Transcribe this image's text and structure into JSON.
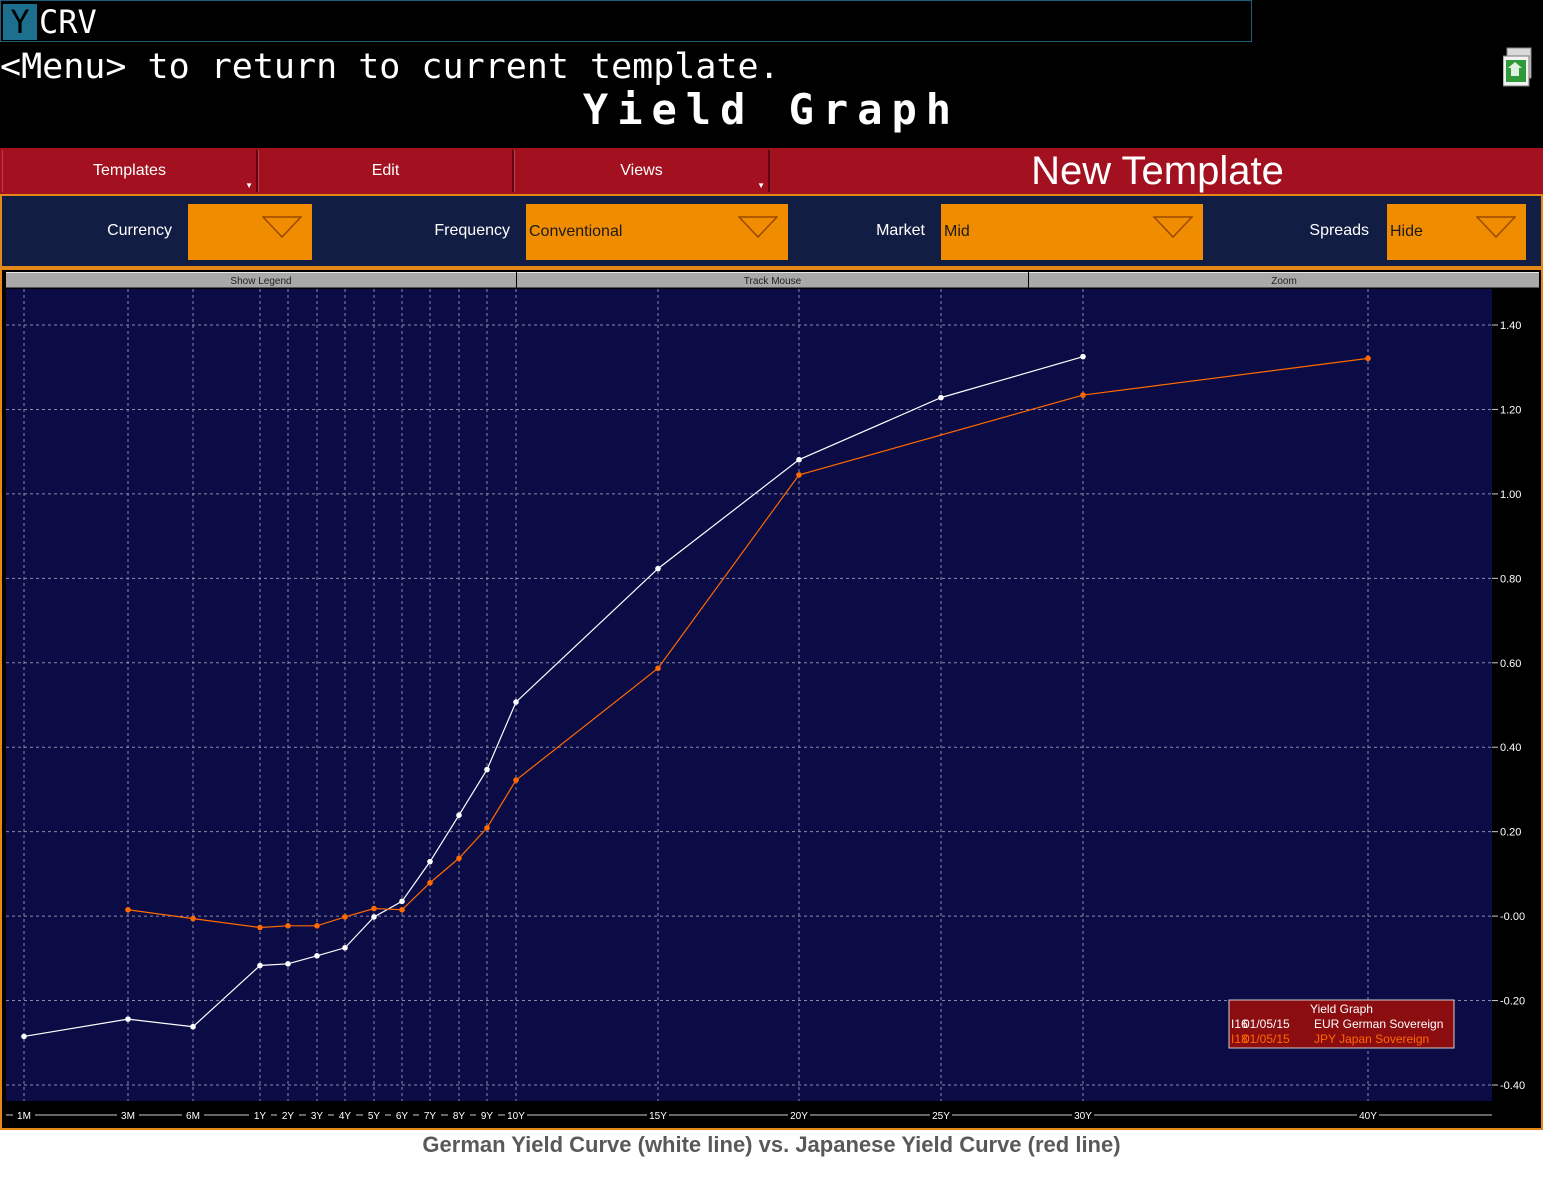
{
  "terminal": {
    "command_prefix": "Y",
    "command_rest": "CRV",
    "menu_hint": "<Menu> to return to current template.",
    "page_title": "Yield Graph"
  },
  "toolbar": {
    "templates_label": "Templates",
    "edit_label": "Edit",
    "views_label": "Views",
    "template_name": "New Template"
  },
  "controls": {
    "currency_label": "Currency",
    "currency_value": "",
    "frequency_label": "Frequency",
    "frequency_value": "Conventional",
    "market_label": "Market",
    "market_value": "Mid",
    "spreads_label": "Spreads",
    "spreads_value": "Hide"
  },
  "chart_tabs": {
    "show_legend": "Show Legend",
    "track_mouse": "Track Mouse",
    "zoom": "Zoom"
  },
  "colors": {
    "plot_bg": "#0b0b45",
    "german_line": "#ffffff",
    "japan_line": "#ff6a00",
    "legend_bg": "#8b0d10",
    "toolbar_red": "#a3101f",
    "control_orange": "#f08c00"
  },
  "chart_data": {
    "type": "line",
    "x_categories": [
      "1M",
      "3M",
      "6M",
      "1Y",
      "2Y",
      "3Y",
      "4Y",
      "5Y",
      "6Y",
      "7Y",
      "8Y",
      "9Y",
      "10Y",
      "15Y",
      "20Y",
      "25Y",
      "30Y",
      "40Y"
    ],
    "y_ticks": [
      "1.40",
      "1.20",
      "1.00",
      "0.80",
      "0.60",
      "0.40",
      "0.20",
      "-0.00",
      "-0.20",
      "-0.40"
    ],
    "ylim": [
      -0.4,
      1.4
    ],
    "grid": true,
    "y_axis_side": "right",
    "legend_position": "bottom-right",
    "legend": {
      "title": "Yield Graph",
      "entries": [
        {
          "id": "I16",
          "date": "01/05/15",
          "name": "EUR German Sovereign"
        },
        {
          "id": "I18",
          "date": "01/05/15",
          "name": "JPY Japan Sovereign"
        }
      ]
    },
    "series": [
      {
        "key": "german",
        "points": [
          {
            "x": "1M",
            "y": -0.285
          },
          {
            "x": "3M",
            "y": -0.244
          },
          {
            "x": "6M",
            "y": -0.262
          },
          {
            "x": "1Y",
            "y": -0.117
          },
          {
            "x": "2Y",
            "y": -0.113
          },
          {
            "x": "3Y",
            "y": -0.094
          },
          {
            "x": "4Y",
            "y": -0.075
          },
          {
            "x": "5Y",
            "y": -0.002
          },
          {
            "x": "6Y",
            "y": 0.035
          },
          {
            "x": "7Y",
            "y": 0.129
          },
          {
            "x": "8Y",
            "y": 0.239
          },
          {
            "x": "9Y",
            "y": 0.347
          },
          {
            "x": "10Y",
            "y": 0.507
          },
          {
            "x": "15Y",
            "y": 0.823
          },
          {
            "x": "20Y",
            "y": 1.081
          },
          {
            "x": "25Y",
            "y": 1.228
          },
          {
            "x": "30Y",
            "y": 1.325
          }
        ]
      },
      {
        "key": "japan",
        "points": [
          {
            "x": "3M",
            "y": 0.015
          },
          {
            "x": "6M",
            "y": -0.006
          },
          {
            "x": "1Y",
            "y": -0.027
          },
          {
            "x": "2Y",
            "y": -0.023
          },
          {
            "x": "3Y",
            "y": -0.023
          },
          {
            "x": "4Y",
            "y": -0.002
          },
          {
            "x": "5Y",
            "y": 0.018
          },
          {
            "x": "6Y",
            "y": 0.015
          },
          {
            "x": "7Y",
            "y": 0.079
          },
          {
            "x": "8Y",
            "y": 0.137
          },
          {
            "x": "9Y",
            "y": 0.209
          },
          {
            "x": "10Y",
            "y": 0.322
          },
          {
            "x": "15Y",
            "y": 0.587
          },
          {
            "x": "20Y",
            "y": 1.045
          },
          {
            "x": "30Y",
            "y": 1.234
          },
          {
            "x": "40Y",
            "y": 1.321
          }
        ]
      }
    ]
  },
  "caption": "German Yield Curve (white line) vs. Japanese Yield Curve (red line)"
}
